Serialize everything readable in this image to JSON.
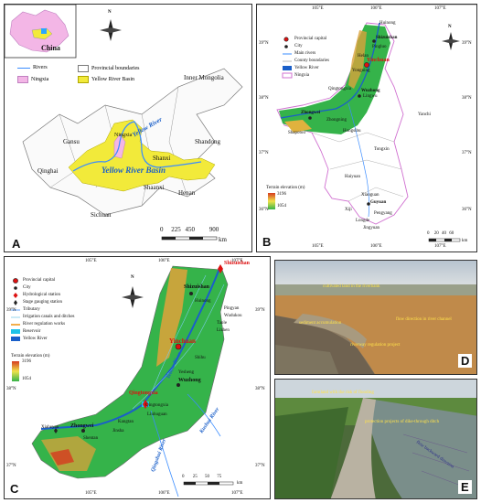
{
  "panels": {
    "A": {
      "letter": "A",
      "inset_label": "China",
      "north": "N",
      "legend": {
        "rivers": "Rivers",
        "provincial_boundaries": "Provincial boundaries",
        "ningxia": "Ningxia",
        "yellow_river_basin": "Yellow River Basin"
      },
      "labels": {
        "inner_mongolia": "Inner Mongolia",
        "gansu": "Gansu",
        "qinghai": "Qinghai",
        "ningxia": "Ningxia",
        "shanxi": "Shanxi",
        "shandong": "Shandong",
        "shaanxi": "Shaanxi",
        "henan": "Henan",
        "sichuan": "Sichuan",
        "yellow_river": "Yellow River",
        "yellow_river_basin": "Yellow River Basin"
      },
      "scale": {
        "ticks": [
          "0",
          "225",
          "450",
          "900"
        ],
        "unit": "km"
      }
    },
    "B": {
      "letter": "B",
      "north": "N",
      "lon_ticks": [
        "105°E",
        "106°E",
        "107°E"
      ],
      "lat_ticks": [
        "39°N",
        "38°N",
        "37°N",
        "36°N"
      ],
      "legend": {
        "capital": "Provincial capital",
        "city": "City",
        "main_rivers": "Main rivers",
        "county": "County boundaries",
        "yellow_river": "Yellow River",
        "ningxia": "Ningxia"
      },
      "elevation": {
        "title": "Terrain elevation (m)",
        "high": "3196",
        "low": "1054"
      },
      "places": {
        "shizuishan": "Shizuishan",
        "yinchuan": "Yinchuan",
        "wuzhong": "Wuzhong",
        "zhongwei": "Zhongwei",
        "guyuan": "Guyuan",
        "qingtongxia": "Qingtongxia",
        "lingwu": "Lingwu",
        "yanchi": "Yanchi",
        "tongxin": "Tongxin",
        "haiyuan": "Haiyuan",
        "xiji": "Xiji",
        "longde": "Longde",
        "pengyang": "Pengyang",
        "jingyuan": "Jingyuan",
        "helan": "Helan",
        "pingluo": "Pingluo",
        "huinong": "Huinong",
        "shapotou": "Shapotou",
        "zhongning": "Zhongning",
        "hongsibu": "Hongsibu",
        "yongning": "Yongning",
        "xiaoguan": "Xiaoguan"
      },
      "scale": {
        "ticks": [
          "0",
          "20",
          "40",
          "60"
        ],
        "unit": "km"
      }
    },
    "C": {
      "letter": "C",
      "north": "N",
      "lon_ticks": [
        "105°E",
        "106°E",
        "107°E"
      ],
      "lat_ticks": [
        "39°N",
        "38°N",
        "37°N"
      ],
      "legend": {
        "capital": "Provincial capital",
        "city": "City",
        "hydro": "Hydrological station",
        "stage": "Stage gauging station",
        "tributary": "Tributary",
        "irrigation": "Irrigation canals and ditches",
        "regulation": "River regulation works",
        "reservoir": "Reservoir",
        "yellow_river": "Yellow River"
      },
      "elevation": {
        "title": "Terrain elevation (m)",
        "high": "3196",
        "low": "1054"
      },
      "places": {
        "shizuishan_st": "Shizuishan",
        "shizuishan": "Shizuishan",
        "yinchuan": "Yinchuan",
        "wuzhong": "Wuzhong",
        "zhongwei": "Zhongwei",
        "qingtongxia": "Qingtongxia",
        "xiaheyan": "Xiaheyan",
        "shentan": "Shentan",
        "jinsha": "Jinsha",
        "kangtan": "Kangtan",
        "liuhuguan": "Liuhuguan",
        "yesheng": "Yesheng",
        "qingtongxia_st": "Qingtongxia",
        "huinong": "Huinong",
        "pingyan": "Pingyan",
        "wudukou": "Wudukou",
        "taole": "Taole",
        "lizhen": "Lizhen",
        "shihu": "Shihu"
      },
      "rivers": {
        "kushui": "Kushui River",
        "qingshui": "Qingshui River",
        "yellow": "Yellow River"
      },
      "scale": {
        "ticks": [
          "0",
          "25",
          "50",
          "75"
        ],
        "unit": "km"
      }
    },
    "D": {
      "letter": "D",
      "notes": {
        "cultivated": "cultivated land in the riverbank",
        "sediment": "sediment accumulation",
        "flow": "flow direction in river channel",
        "riverway": "riverway regulation project"
      }
    },
    "E": {
      "letter": "E",
      "notes": {
        "farmland": "farmland with the risk of flooding",
        "protection": "protection projects of dike-through ditch",
        "backward": "flow backward direction"
      }
    }
  },
  "colors": {
    "basin": "#f2ea3a",
    "ningxia_fill": "#f3b6e6",
    "terrain_high": "#d63b1f",
    "terrain_mid": "#f0e24a",
    "terrain_low": "#35b34a",
    "river": "#3a8cff",
    "boundary": "#7a7a7a",
    "red_label": "#d11111"
  }
}
